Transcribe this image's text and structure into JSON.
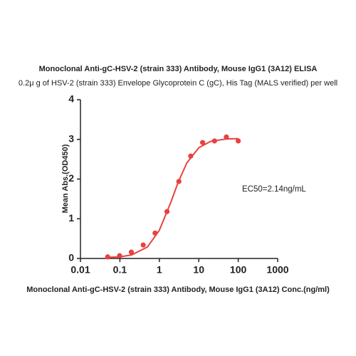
{
  "chart_data": {
    "type": "scatter",
    "title": "Monoclonal Anti-gC-HSV-2 (strain 333) Antibody, Mouse IgG1 (3A12) ELISA",
    "subtitle": "0.2μ g of HSV-2 (strain 333) Envelope Glycoprotein C (gC), His Tag (MALS verified) per well",
    "xlabel": "Monoclonal Anti-gC-HSV-2 (strain 333) Antibody, Mouse IgG1 (3A12) Conc.(ng/ml)",
    "ylabel": "Mean Abs.(OD450)",
    "annotation": "EC50=2.14ng/mL",
    "xscale": "log",
    "xlim": [
      0.01,
      1000
    ],
    "xticks": [
      0.01,
      0.1,
      1,
      10,
      100,
      1000
    ],
    "ylim": [
      0,
      4
    ],
    "yticks": [
      0,
      1,
      2,
      3,
      4
    ],
    "series": [
      {
        "color": "#e8413e",
        "x": [
          0.049,
          0.098,
          0.195,
          0.39,
          0.78,
          1.5625,
          3.125,
          6.25,
          12.5,
          25,
          50,
          100
        ],
        "values": [
          0.04,
          0.07,
          0.16,
          0.34,
          0.64,
          1.18,
          1.94,
          2.58,
          2.92,
          2.96,
          3.06,
          2.96
        ]
      }
    ],
    "curve": {
      "color": "#e8413e",
      "x": [
        0.05,
        0.1,
        0.2,
        0.5,
        1,
        2,
        3,
        5,
        10,
        20,
        50,
        100
      ],
      "values": [
        0.03,
        0.04,
        0.09,
        0.29,
        0.71,
        1.44,
        1.92,
        2.41,
        2.79,
        2.95,
        3.01,
        3.02
      ]
    }
  }
}
